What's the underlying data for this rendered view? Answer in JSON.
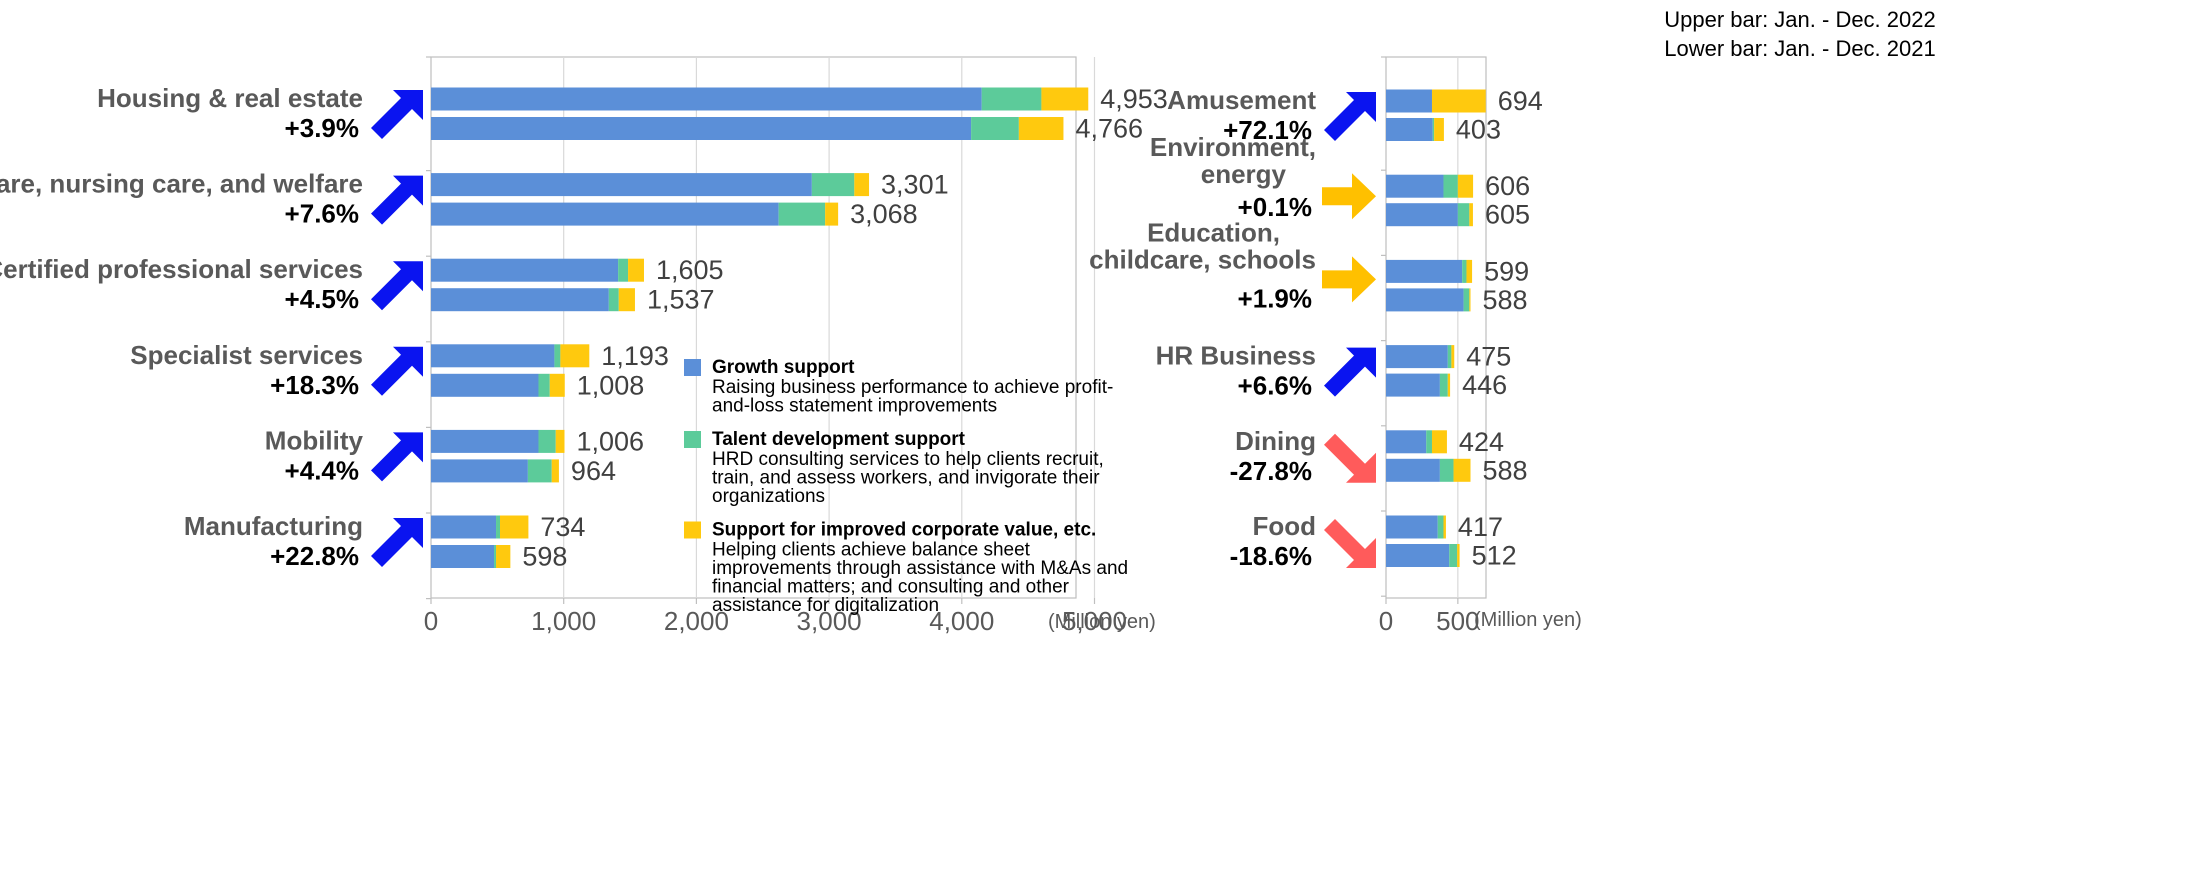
{
  "chart_data": [
    {
      "type": "bar",
      "orientation": "horizontal",
      "stacked": true,
      "unit": "(Million yen)",
      "xlim": [
        0,
        5500
      ],
      "xticks": [
        "0",
        "1,000",
        "2,000",
        "3,000",
        "4,000",
        "5,000"
      ],
      "xtick_values": [
        0,
        1000,
        2000,
        3000,
        4000,
        5000
      ],
      "grid": true,
      "series": [
        {
          "name": "Growth support",
          "color": "#5B8FD8"
        },
        {
          "name": "Talent development support",
          "color": "#5CCB9A"
        },
        {
          "name": "Support for improved corporate value, etc.",
          "color": "#FFC90E"
        }
      ],
      "categories": [
        {
          "name": "Housing & real estate",
          "change": "+3.9%",
          "trend": "up",
          "bars": [
            {
              "period": "2022",
              "label": "4,953",
              "values": [
                4150,
                450,
                353
              ]
            },
            {
              "period": "2021",
              "label": "4,766",
              "values": [
                4070,
                360,
                336
              ]
            }
          ]
        },
        {
          "name": "Healthcare, nursing care, and welfare",
          "change": "+7.6%",
          "trend": "up",
          "bars": [
            {
              "period": "2022",
              "label": "3,301",
              "values": [
                2870,
                320,
                111
              ]
            },
            {
              "period": "2021",
              "label": "3,068",
              "values": [
                2620,
                350,
                98
              ]
            }
          ]
        },
        {
          "name": "Certified professional services",
          "change": "+4.5%",
          "trend": "up",
          "bars": [
            {
              "period": "2022",
              "label": "1,605",
              "values": [
                1410,
                75,
                120
              ]
            },
            {
              "period": "2021",
              "label": "1,537",
              "values": [
                1340,
                75,
                122
              ]
            }
          ]
        },
        {
          "name": "Specialist services",
          "change": "+18.3%",
          "trend": "up",
          "bars": [
            {
              "period": "2022",
              "label": "1,193",
              "values": [
                930,
                45,
                218
              ]
            },
            {
              "period": "2021",
              "label": "1,008",
              "values": [
                810,
                85,
                113
              ]
            }
          ]
        },
        {
          "name": "Mobility",
          "change": "+4.4%",
          "trend": "up",
          "bars": [
            {
              "period": "2022",
              "label": "1,006",
              "values": [
                810,
                130,
                66
              ]
            },
            {
              "period": "2021",
              "label": "964",
              "values": [
                730,
                180,
                54
              ]
            }
          ]
        },
        {
          "name": "Manufacturing",
          "change": "+22.8%",
          "trend": "up",
          "bars": [
            {
              "period": "2022",
              "label": "734",
              "values": [
                490,
                30,
                214
              ]
            },
            {
              "period": "2021",
              "label": "598",
              "values": [
                475,
                15,
                108
              ]
            }
          ]
        }
      ]
    },
    {
      "type": "bar",
      "orientation": "horizontal",
      "stacked": true,
      "unit": "(Million yen)",
      "xlim": [
        0,
        700
      ],
      "xticks": [
        "0",
        "500"
      ],
      "xtick_values": [
        0,
        500
      ],
      "grid": true,
      "categories": [
        {
          "name": "Amusement",
          "change": "+72.1%",
          "trend": "up",
          "bars": [
            {
              "period": "2022",
              "label": "694",
              "values": [
                320,
                0,
                374
              ]
            },
            {
              "period": "2021",
              "label": "403",
              "values": [
                325,
                10,
                68
              ]
            }
          ]
        },
        {
          "name": "Environment, energy",
          "change": "+0.1%",
          "trend": "flat",
          "bars": [
            {
              "period": "2022",
              "label": "606",
              "values": [
                400,
                100,
                106
              ]
            },
            {
              "period": "2021",
              "label": "605",
              "values": [
                500,
                80,
                25
              ]
            }
          ]
        },
        {
          "name": "Education, childcare, schools",
          "change": "+1.9%",
          "trend": "flat",
          "bars": [
            {
              "period": "2022",
              "label": "599",
              "values": [
                530,
                30,
                39
              ]
            },
            {
              "period": "2021",
              "label": "588",
              "values": [
                540,
                40,
                8
              ]
            }
          ]
        },
        {
          "name": "HR Business",
          "change": "+6.6%",
          "trend": "up",
          "bars": [
            {
              "period": "2022",
              "label": "475",
              "values": [
                430,
                25,
                20
              ]
            },
            {
              "period": "2021",
              "label": "446",
              "values": [
                375,
                55,
                16
              ]
            }
          ]
        },
        {
          "name": "Dining",
          "change": "-27.8%",
          "trend": "down",
          "bars": [
            {
              "period": "2022",
              "label": "424",
              "values": [
                280,
                40,
                104
              ]
            },
            {
              "period": "2021",
              "label": "588",
              "values": [
                375,
                95,
                118
              ]
            }
          ]
        },
        {
          "name": "Food",
          "change": "-18.6%",
          "trend": "down",
          "bars": [
            {
              "period": "2022",
              "label": "417",
              "values": [
                360,
                40,
                17
              ]
            },
            {
              "period": "2021",
              "label": "512",
              "values": [
                440,
                55,
                17
              ]
            }
          ]
        }
      ]
    }
  ],
  "period_note": {
    "upper": "Upper bar: Jan. - Dec. 2022",
    "lower": "Lower bar: Jan. - Dec. 2021"
  },
  "legend": [
    {
      "title": "Growth support",
      "lines": [
        "Raising business performance to achieve profit-",
        "and-loss statement improvements"
      ],
      "color": "#5B8FD8"
    },
    {
      "title": "Talent development support",
      "lines": [
        "HRD consulting services to help clients recruit,",
        "train, and assess workers, and invigorate their",
        "organizations"
      ],
      "color": "#5CCB9A"
    },
    {
      "title": "Support for improved corporate value, etc.",
      "lines": [
        "Helping clients achieve balance sheet",
        "improvements through assistance with M&As and",
        "financial matters; and consulting and other",
        "assistance for digitalization"
      ],
      "color": "#FFC90E"
    }
  ],
  "arrow_colors": {
    "up": "#0A14F0",
    "flat": "#FFC000",
    "down": "#FF5B5B"
  },
  "colors": {
    "grid": "#D9D9D9",
    "axis": "#BFBFBF"
  }
}
